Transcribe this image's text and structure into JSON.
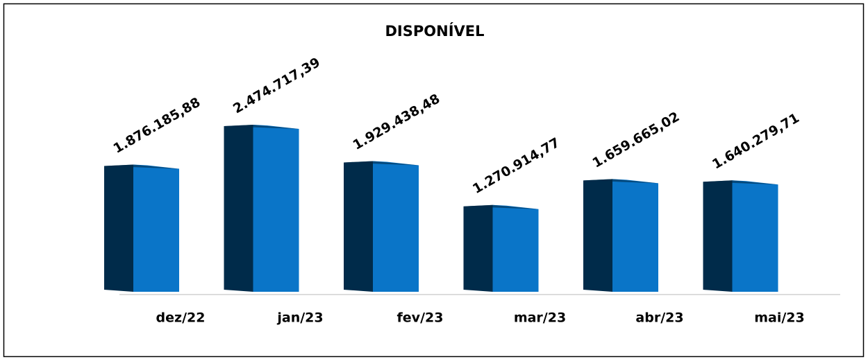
{
  "chart_data": {
    "type": "bar",
    "title": "DISPONÍVEL",
    "categories": [
      "dez/22",
      "jan/23",
      "fev/23",
      "mar/23",
      "abr/23",
      "mai/23"
    ],
    "values": [
      1876185.88,
      2474717.39,
      1929438.48,
      1270914.77,
      1659665.02,
      1640279.71
    ],
    "value_labels": [
      "1.876.185,88",
      "2.474.717,39",
      "1.929.438,48",
      "1.270.914,77",
      "1.659.665,02",
      "1.640.279,71"
    ],
    "color": "#0a75c8",
    "side_color": "#002b4a"
  }
}
